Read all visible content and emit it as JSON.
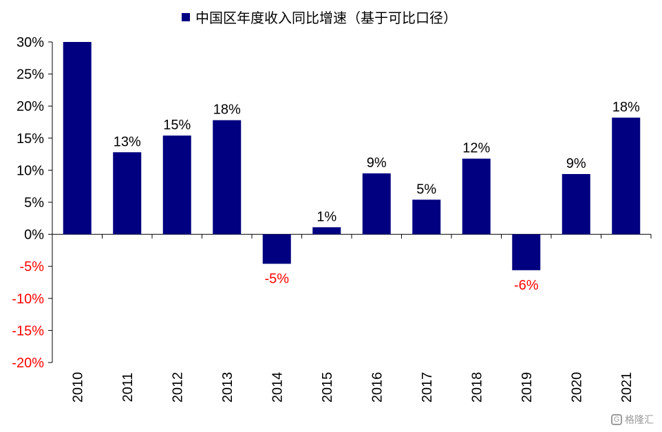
{
  "chart_data": {
    "type": "bar",
    "title": "中国区年度收入同比增速（基于可比口径）",
    "categories": [
      "2010",
      "2011",
      "2012",
      "2013",
      "2014",
      "2015",
      "2016",
      "2017",
      "2018",
      "2019",
      "2020",
      "2021"
    ],
    "series": [
      {
        "name": "中国区年度收入同比增速（基于可比口径）",
        "values": [
          30,
          12.8,
          15.4,
          17.8,
          -4.6,
          1.1,
          9.5,
          5.4,
          11.8,
          -5.6,
          9.4,
          18.2
        ]
      }
    ],
    "data_labels": [
      "",
      "13%",
      "15%",
      "18%",
      "-5%",
      "1%",
      "9%",
      "5%",
      "12%",
      "-6%",
      "9%",
      "18%"
    ],
    "y_tick_labels": [
      "30%",
      "25%",
      "20%",
      "15%",
      "10%",
      "5%",
      "0%",
      "-5%",
      "-10%",
      "-15%",
      "-20%"
    ],
    "ylim": [
      -20,
      30
    ],
    "xlabel": "",
    "ylabel": "",
    "grid": false,
    "legend_position": "top",
    "colors": {
      "bar": "#000080",
      "negative_text": "#ff0000",
      "positive_text": "#000000"
    }
  },
  "watermark": {
    "text": "格隆汇",
    "logo": "G"
  }
}
